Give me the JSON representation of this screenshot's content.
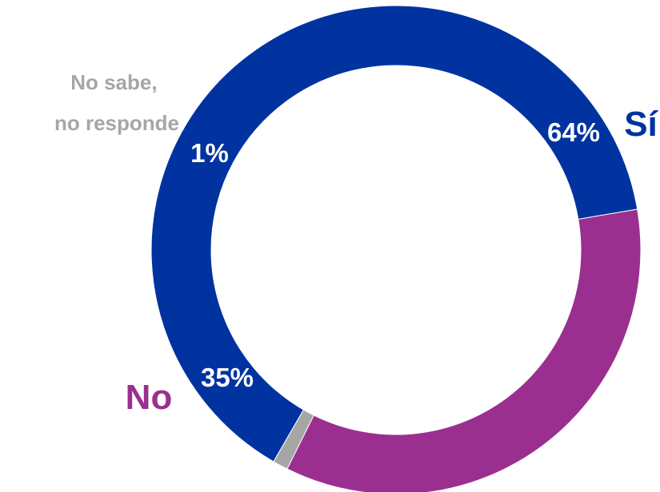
{
  "chart_data": {
    "type": "pie",
    "variant": "donut",
    "categories": [
      "Sí",
      "No",
      "No sabe, no responde"
    ],
    "values": [
      64,
      35,
      1
    ],
    "value_labels": [
      "64%",
      "35%",
      "1%"
    ],
    "colors": [
      "#0033A0",
      "#9B2F8F",
      "#A6A6A6"
    ],
    "label_colors": [
      "#0033A0",
      "#9B2F8F",
      "#A6A6A6"
    ],
    "category_label_lines": [
      [
        "Sí"
      ],
      [
        "No"
      ],
      [
        "No sabe,",
        "no responde"
      ]
    ]
  }
}
